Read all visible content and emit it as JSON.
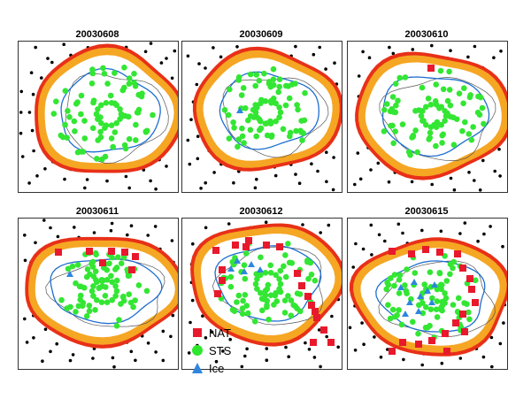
{
  "panels": [
    {
      "title": "20030608",
      "nat": [],
      "ice": []
    },
    {
      "title": "20030609",
      "nat": [],
      "ice": [
        [
          65,
          78
        ]
      ]
    },
    {
      "title": "20030610",
      "nat": [
        [
          94,
          30
        ]
      ],
      "ice": []
    },
    {
      "title": "20030611",
      "nat": [
        [
          45,
          38
        ],
        [
          80,
          37
        ],
        [
          105,
          37
        ],
        [
          120,
          38
        ],
        [
          132,
          43
        ],
        [
          95,
          50
        ],
        [
          128,
          58
        ]
      ],
      "ice": [
        [
          58,
          63
        ]
      ]
    },
    {
      "title": "20030612",
      "nat": [
        [
          38,
          36
        ],
        [
          60,
          30
        ],
        [
          75,
          25
        ],
        [
          95,
          30
        ],
        [
          110,
          32
        ],
        [
          45,
          70
        ],
        [
          40,
          85
        ],
        [
          72,
          32
        ],
        [
          130,
          62
        ],
        [
          135,
          76
        ],
        [
          142,
          88
        ],
        [
          146,
          98
        ],
        [
          150,
          105
        ],
        [
          152,
          112
        ],
        [
          160,
          126
        ],
        [
          168,
          140
        ],
        [
          148,
          140
        ],
        [
          45,
          58
        ]
      ],
      "ice": [
        [
          55,
          57
        ],
        [
          62,
          48
        ],
        [
          70,
          60
        ],
        [
          78,
          52
        ],
        [
          88,
          58
        ]
      ]
    },
    {
      "title": "20030615",
      "nat": [
        [
          50,
          37
        ],
        [
          72,
          40
        ],
        [
          88,
          35
        ],
        [
          104,
          38
        ],
        [
          124,
          40
        ],
        [
          130,
          56
        ],
        [
          138,
          68
        ],
        [
          140,
          80
        ],
        [
          144,
          95
        ],
        [
          130,
          108
        ],
        [
          122,
          118
        ],
        [
          110,
          130
        ],
        [
          95,
          138
        ],
        [
          80,
          142
        ],
        [
          62,
          140
        ],
        [
          50,
          150
        ],
        [
          112,
          150
        ],
        [
          132,
          128
        ]
      ],
      "ice": [
        [
          60,
          78
        ],
        [
          75,
          72
        ],
        [
          82,
          88
        ],
        [
          90,
          82
        ],
        [
          70,
          95
        ],
        [
          95,
          95
        ],
        [
          80,
          105
        ],
        [
          65,
          108
        ],
        [
          98,
          75
        ]
      ]
    }
  ],
  "legend": [
    {
      "label": "NAT",
      "color": "#e8192c",
      "shape": "square"
    },
    {
      "label": "STS",
      "color": "#2ee62e",
      "shape": "circle"
    },
    {
      "label": "Ice",
      "color": "#2e86de",
      "shape": "triangle"
    }
  ],
  "colors": {
    "vortex_edge": "#e83018",
    "vortex_fill": "#f5a623",
    "inner_fill": "#ffffff",
    "sts": "#33e633",
    "nat": "#e8192c",
    "ice": "#2e86de",
    "boundary": "#1e6fd0",
    "station": "#000000"
  }
}
